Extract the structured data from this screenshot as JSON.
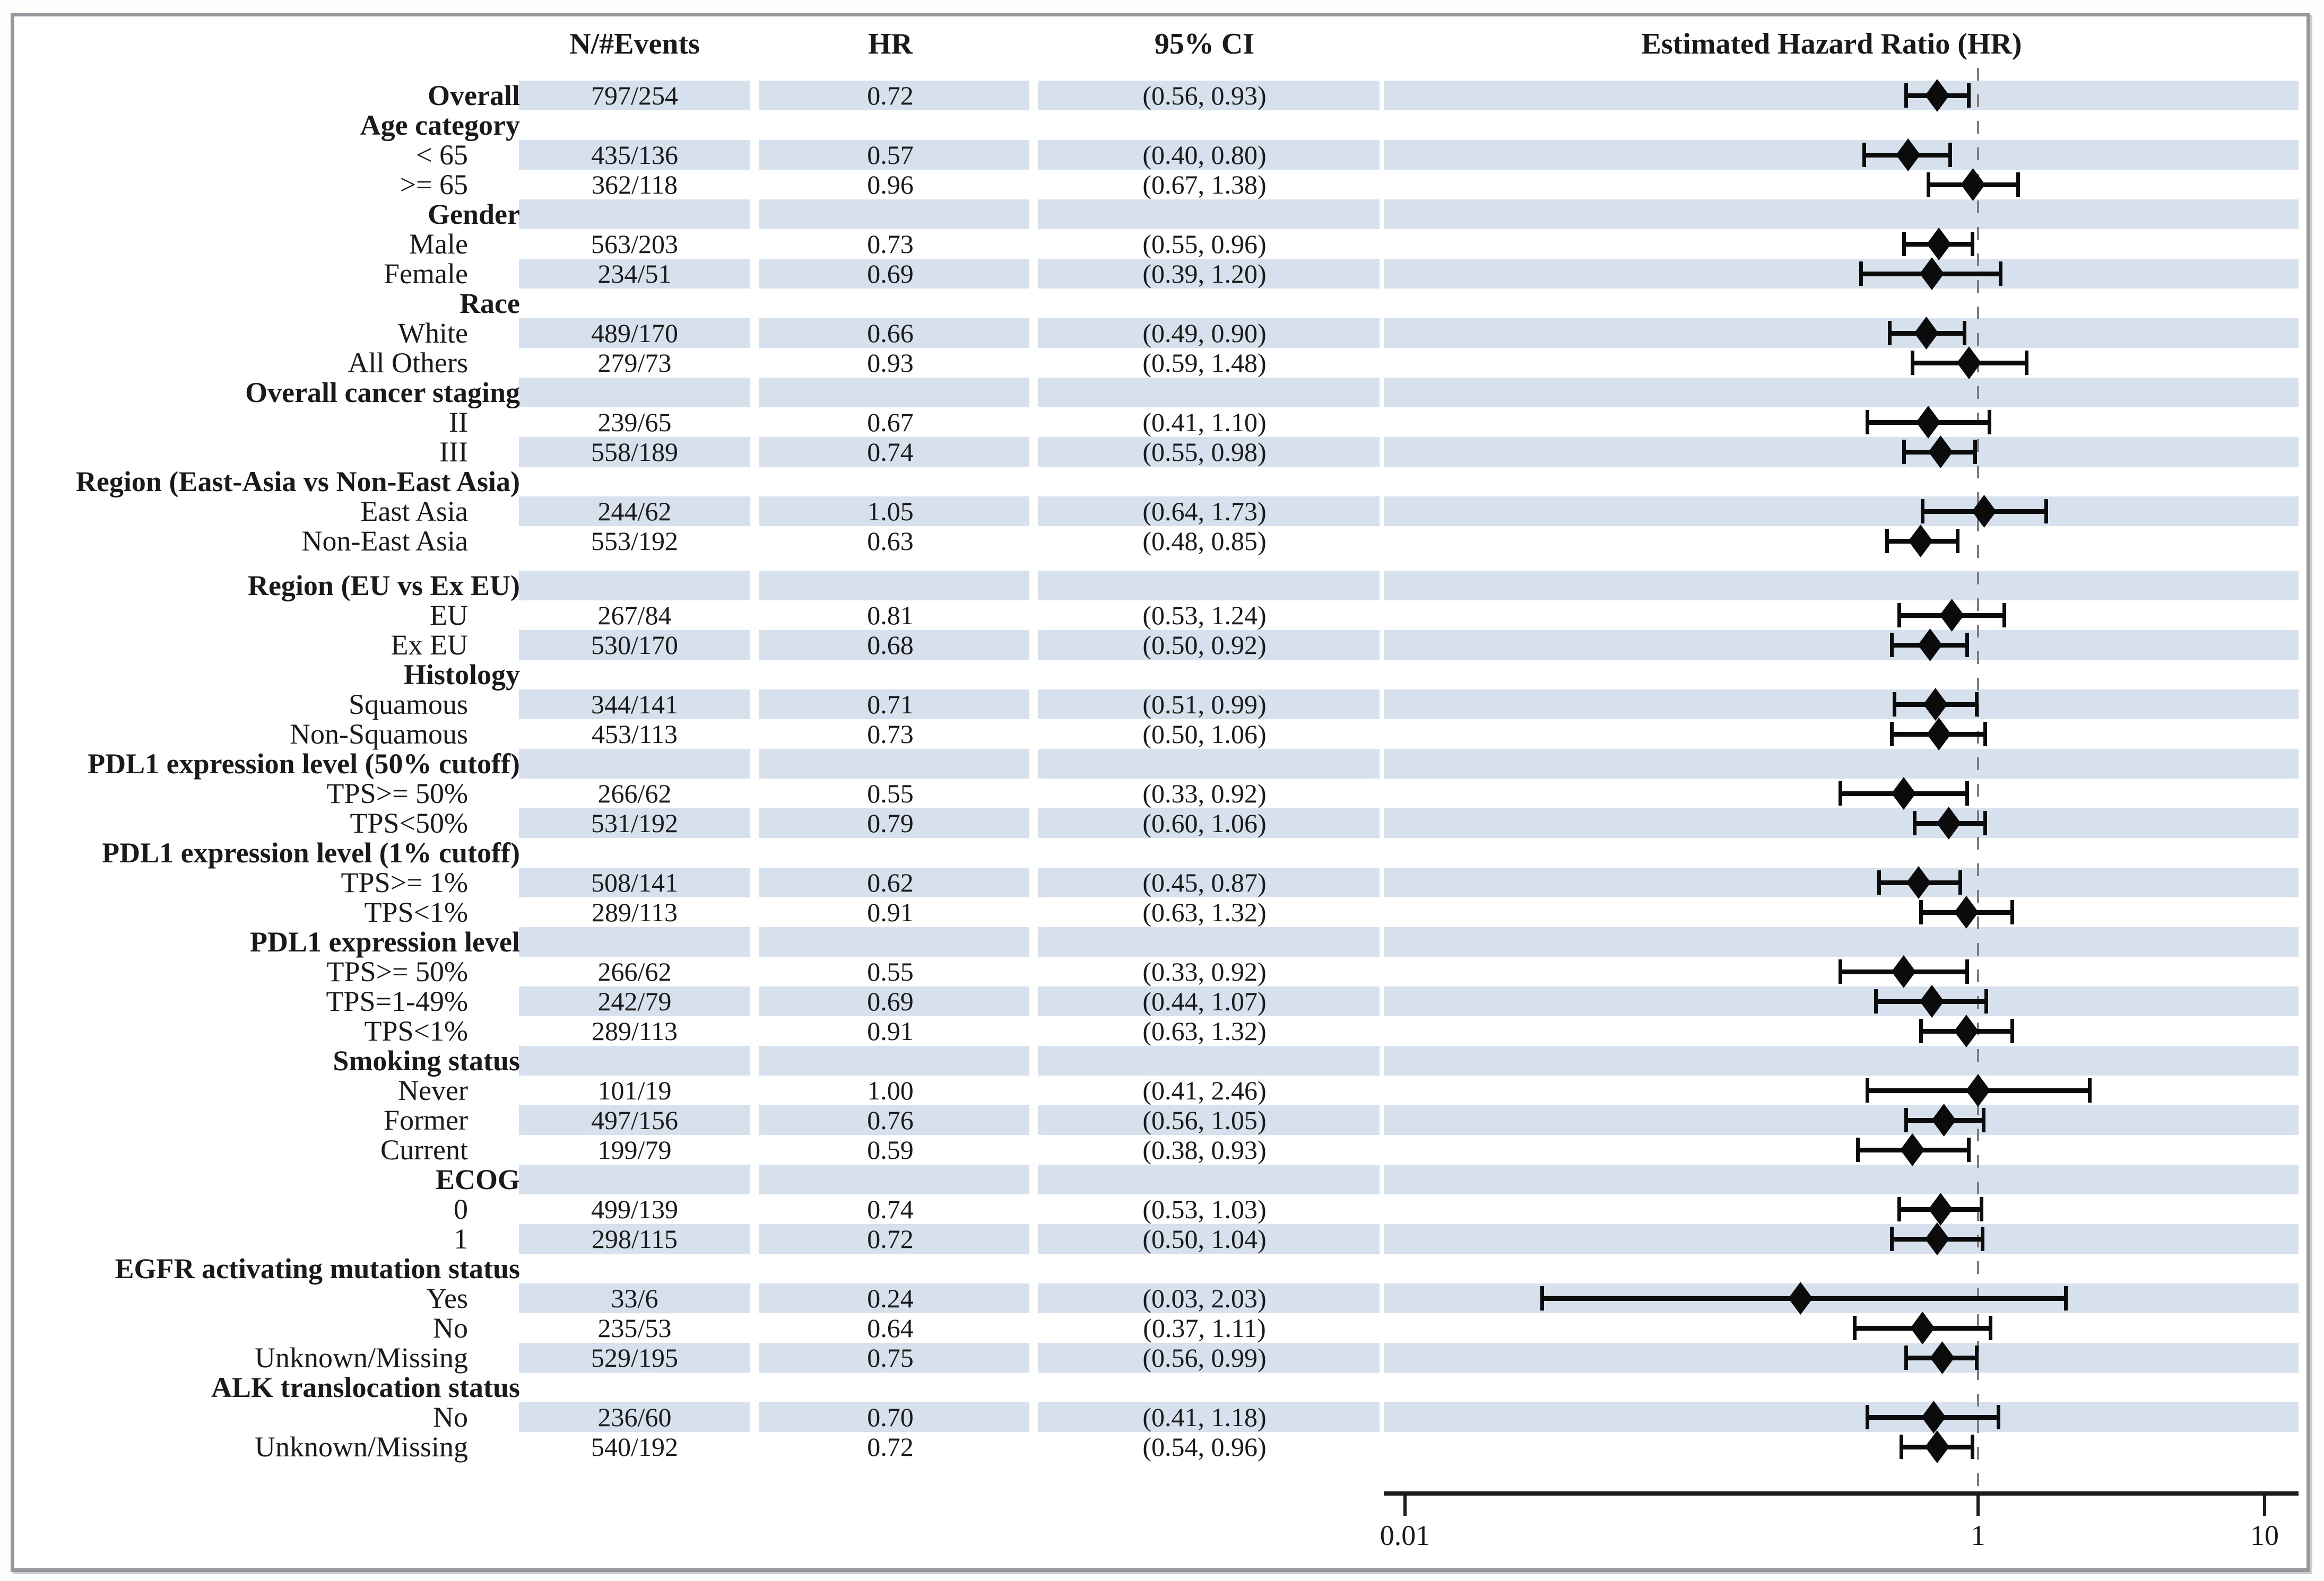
{
  "colors": {
    "band": "#d7e1ee",
    "marker": "#0b0b0b",
    "axis": "#1c1c1c",
    "ref_line": "#7d7d7d",
    "frame": "#97979d",
    "text": "#1a1a1a"
  },
  "chart_data": {
    "type": "forest",
    "title": "Estimated Hazard Ratio (HR)",
    "columns": [
      "N/#Events",
      "HR",
      "95% CI"
    ],
    "x_axis": {
      "scale": "log10",
      "min": 0.01,
      "max": 10,
      "ticks": [
        0.01,
        1,
        10
      ],
      "tick_labels": [
        "0.01",
        "1",
        "10"
      ],
      "ref_line": 1,
      "grid": false
    },
    "legend": null,
    "rows": [
      {
        "label": "Overall",
        "bold": true,
        "n": "797/254",
        "hr": 0.72,
        "hrt": "0.72",
        "ci": "(0.56, 0.93)",
        "lo": 0.56,
        "hi": 0.93
      },
      {
        "label": "Age category",
        "bold": true,
        "header": true
      },
      {
        "label": "< 65",
        "n": "435/136",
        "hr": 0.57,
        "hrt": "0.57",
        "ci": "(0.40, 0.80)",
        "lo": 0.4,
        "hi": 0.8
      },
      {
        "label": ">= 65",
        "n": "362/118",
        "hr": 0.96,
        "hrt": "0.96",
        "ci": "(0.67, 1.38)",
        "lo": 0.67,
        "hi": 1.38
      },
      {
        "label": "Gender",
        "bold": true,
        "header": true
      },
      {
        "label": "Male",
        "n": "563/203",
        "hr": 0.73,
        "hrt": "0.73",
        "ci": "(0.55, 0.96)",
        "lo": 0.55,
        "hi": 0.96
      },
      {
        "label": "Female",
        "n": "234/51",
        "hr": 0.69,
        "hrt": "0.69",
        "ci": "(0.39, 1.20)",
        "lo": 0.39,
        "hi": 1.2
      },
      {
        "label": "Race",
        "bold": true,
        "header": true
      },
      {
        "label": "White",
        "n": "489/170",
        "hr": 0.66,
        "hrt": "0.66",
        "ci": "(0.49, 0.90)",
        "lo": 0.49,
        "hi": 0.9
      },
      {
        "label": "All Others",
        "n": "279/73",
        "hr": 0.93,
        "hrt": "0.93",
        "ci": "(0.59, 1.48)",
        "lo": 0.59,
        "hi": 1.48
      },
      {
        "label": "Overall cancer staging",
        "bold": true,
        "header": true
      },
      {
        "label": "II",
        "n": "239/65",
        "hr": 0.67,
        "hrt": "0.67",
        "ci": "(0.41, 1.10)",
        "lo": 0.41,
        "hi": 1.1
      },
      {
        "label": "III",
        "n": "558/189",
        "hr": 0.74,
        "hrt": "0.74",
        "ci": "(0.55, 0.98)",
        "lo": 0.55,
        "hi": 0.98
      },
      {
        "label": "Region (East-Asia vs Non-East Asia)",
        "bold": true,
        "header": true
      },
      {
        "label": "East Asia",
        "n": "244/62",
        "hr": 1.05,
        "hrt": "1.05",
        "ci": "(0.64, 1.73)",
        "lo": 0.64,
        "hi": 1.73
      },
      {
        "label": "Non-East Asia",
        "n": "553/192",
        "hr": 0.63,
        "hrt": "0.63",
        "ci": "(0.48, 0.85)",
        "lo": 0.48,
        "hi": 0.85
      },
      {
        "spacer": true
      },
      {
        "label": "Region (EU vs Ex EU)",
        "bold": true,
        "header": true
      },
      {
        "label": "EU",
        "n": "267/84",
        "hr": 0.81,
        "hrt": "0.81",
        "ci": "(0.53, 1.24)",
        "lo": 0.53,
        "hi": 1.24
      },
      {
        "label": "Ex EU",
        "n": "530/170",
        "hr": 0.68,
        "hrt": "0.68",
        "ci": "(0.50, 0.92)",
        "lo": 0.5,
        "hi": 0.92
      },
      {
        "label": "Histology",
        "bold": true,
        "header": true
      },
      {
        "label": "Squamous",
        "n": "344/141",
        "hr": 0.71,
        "hrt": "0.71",
        "ci": "(0.51, 0.99)",
        "lo": 0.51,
        "hi": 0.99
      },
      {
        "label": "Non-Squamous",
        "n": "453/113",
        "hr": 0.73,
        "hrt": "0.73",
        "ci": "(0.50, 1.06)",
        "lo": 0.5,
        "hi": 1.06
      },
      {
        "label": "PDL1 expression level (50% cutoff)",
        "bold": true,
        "header": true
      },
      {
        "label": "TPS>= 50%",
        "n": "266/62",
        "hr": 0.55,
        "hrt": "0.55",
        "ci": "(0.33, 0.92)",
        "lo": 0.33,
        "hi": 0.92
      },
      {
        "label": "TPS<50%",
        "n": "531/192",
        "hr": 0.79,
        "hrt": "0.79",
        "ci": "(0.60, 1.06)",
        "lo": 0.6,
        "hi": 1.06
      },
      {
        "label": "PDL1 expression level (1% cutoff)",
        "bold": true,
        "header": true
      },
      {
        "label": "TPS>= 1%",
        "n": "508/141",
        "hr": 0.62,
        "hrt": "0.62",
        "ci": "(0.45, 0.87)",
        "lo": 0.45,
        "hi": 0.87
      },
      {
        "label": "TPS<1%",
        "n": "289/113",
        "hr": 0.91,
        "hrt": "0.91",
        "ci": "(0.63, 1.32)",
        "lo": 0.63,
        "hi": 1.32
      },
      {
        "label": "PDL1 expression level",
        "bold": true,
        "header": true
      },
      {
        "label": "TPS>= 50%",
        "n": "266/62",
        "hr": 0.55,
        "hrt": "0.55",
        "ci": "(0.33, 0.92)",
        "lo": 0.33,
        "hi": 0.92
      },
      {
        "label": "TPS=1-49%",
        "n": "242/79",
        "hr": 0.69,
        "hrt": "0.69",
        "ci": "(0.44, 1.07)",
        "lo": 0.44,
        "hi": 1.07
      },
      {
        "label": "TPS<1%",
        "n": "289/113",
        "hr": 0.91,
        "hrt": "0.91",
        "ci": "(0.63, 1.32)",
        "lo": 0.63,
        "hi": 1.32
      },
      {
        "label": "Smoking status",
        "bold": true,
        "header": true
      },
      {
        "label": "Never",
        "n": "101/19",
        "hr": 1.0,
        "hrt": "1.00",
        "ci": "(0.41, 2.46)",
        "lo": 0.41,
        "hi": 2.46
      },
      {
        "label": "Former",
        "n": "497/156",
        "hr": 0.76,
        "hrt": "0.76",
        "ci": "(0.56, 1.05)",
        "lo": 0.56,
        "hi": 1.05
      },
      {
        "label": "Current",
        "n": "199/79",
        "hr": 0.59,
        "hrt": "0.59",
        "ci": "(0.38, 0.93)",
        "lo": 0.38,
        "hi": 0.93
      },
      {
        "label": "ECOG",
        "bold": true,
        "header": true
      },
      {
        "label": "0",
        "n": "499/139",
        "hr": 0.74,
        "hrt": "0.74",
        "ci": "(0.53, 1.03)",
        "lo": 0.53,
        "hi": 1.03
      },
      {
        "label": "1",
        "n": "298/115",
        "hr": 0.72,
        "hrt": "0.72",
        "ci": "(0.50, 1.04)",
        "lo": 0.5,
        "hi": 1.04
      },
      {
        "label": "EGFR activating mutation status",
        "bold": true,
        "header": true
      },
      {
        "label": "Yes",
        "n": "33/6",
        "hr": 0.24,
        "hrt": "0.24",
        "ci": "(0.03, 2.03)",
        "lo": 0.03,
        "hi": 2.03
      },
      {
        "label": "No",
        "n": "235/53",
        "hr": 0.64,
        "hrt": "0.64",
        "ci": "(0.37, 1.11)",
        "lo": 0.37,
        "hi": 1.11
      },
      {
        "label": "Unknown/Missing",
        "n": "529/195",
        "hr": 0.75,
        "hrt": "0.75",
        "ci": "(0.56, 0.99)",
        "lo": 0.56,
        "hi": 0.99
      },
      {
        "label": "ALK translocation status",
        "bold": true,
        "header": true
      },
      {
        "label": "No",
        "n": "236/60",
        "hr": 0.7,
        "hrt": "0.70",
        "ci": "(0.41, 1.18)",
        "lo": 0.41,
        "hi": 1.18
      },
      {
        "label": "Unknown/Missing",
        "n": "540/192",
        "hr": 0.72,
        "hrt": "0.72",
        "ci": "(0.54, 0.96)",
        "lo": 0.54,
        "hi": 0.96
      }
    ]
  }
}
